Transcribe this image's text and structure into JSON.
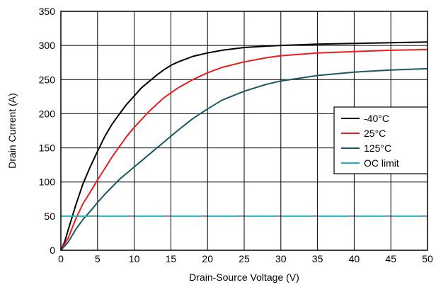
{
  "chart_data": {
    "type": "line",
    "xlabel": "Drain-Source Voltage (V)",
    "ylabel": "Drain Current (A)",
    "xlim": [
      0,
      50
    ],
    "ylim": [
      0,
      350
    ],
    "xticks": [
      "0",
      "5",
      "10",
      "15",
      "20",
      "25",
      "30",
      "35",
      "40",
      "45",
      "50"
    ],
    "yticks": [
      "0",
      "50",
      "100",
      "150",
      "200",
      "250",
      "300",
      "350"
    ],
    "grid": true,
    "legend_position": "right",
    "series": [
      {
        "name": "-40°C",
        "color": "#000000",
        "dash": "solid",
        "x": [
          0,
          0.5,
          1,
          2,
          3,
          4,
          5,
          6,
          7,
          8,
          9,
          10,
          11,
          12,
          13,
          14,
          15,
          16,
          17,
          18,
          20,
          22,
          25,
          28,
          30,
          35,
          40,
          45,
          50
        ],
        "y": [
          0,
          12,
          30,
          65,
          97,
          122,
          145,
          167,
          185,
          200,
          214,
          226,
          238,
          247,
          256,
          264,
          271,
          276,
          280,
          284,
          289,
          293,
          297,
          299,
          300,
          302,
          303,
          304,
          305
        ]
      },
      {
        "name": "25°C",
        "color": "#ee1c1c",
        "dash": "solid",
        "x": [
          0,
          1,
          2,
          3,
          4,
          5,
          6,
          7,
          8,
          9,
          10,
          12,
          14,
          16,
          18,
          20,
          22,
          25,
          28,
          30,
          35,
          40,
          45,
          50
        ],
        "y": [
          0,
          18,
          45,
          68,
          85,
          103,
          120,
          137,
          152,
          167,
          180,
          203,
          223,
          238,
          250,
          260,
          268,
          276,
          282,
          285,
          289,
          291,
          293,
          294
        ]
      },
      {
        "name": "125°C",
        "color": "#1b5766",
        "dash": "solid",
        "x": [
          0,
          1,
          2,
          3,
          4,
          5,
          6,
          7,
          8,
          10,
          12,
          14,
          16,
          18,
          20,
          22,
          25,
          28,
          30,
          35,
          40,
          45,
          50
        ],
        "y": [
          0,
          12,
          30,
          45,
          57,
          70,
          82,
          93,
          104,
          122,
          140,
          158,
          176,
          193,
          207,
          220,
          233,
          243,
          248,
          256,
          261,
          264,
          266
        ]
      },
      {
        "name": "OC limit",
        "color": "#1fb2c4",
        "dash": "dashed",
        "x": [
          0,
          50
        ],
        "y": [
          50,
          50
        ]
      }
    ]
  }
}
